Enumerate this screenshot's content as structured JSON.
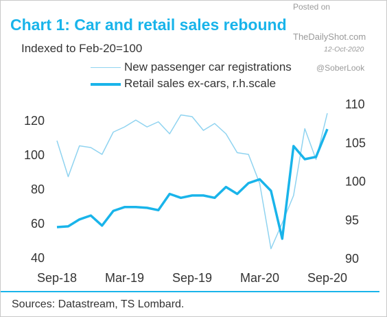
{
  "header": {
    "title": "Chart 1: Car and retail sales rebound",
    "subtitle": "Indexed to Feb-20=100"
  },
  "watermark": {
    "posted_on": "Posted on",
    "site": "TheDailyShot.com",
    "date": "12-Oct-2020",
    "handle": "@SoberLook"
  },
  "footer": {
    "sources": "Sources: Datastream, TS Lombard."
  },
  "colors": {
    "title": "#19b4ea",
    "car_series": "#8fd3f0",
    "retail_series": "#19b4ea",
    "footer_rule": "#19b4ea"
  },
  "chart_data": {
    "type": "line",
    "x": [
      "Sep-18",
      "Oct-18",
      "Nov-18",
      "Dec-18",
      "Jan-19",
      "Feb-19",
      "Mar-19",
      "Apr-19",
      "May-19",
      "Jun-19",
      "Jul-19",
      "Aug-19",
      "Sep-19",
      "Oct-19",
      "Nov-19",
      "Dec-19",
      "Jan-20",
      "Feb-20",
      "Mar-20",
      "Apr-20",
      "May-20",
      "Jun-20",
      "Jul-20",
      "Aug-20",
      "Sep-20"
    ],
    "xticks": [
      "Sep-18",
      "Mar-19",
      "Sep-19",
      "Mar-20",
      "Sep-20"
    ],
    "series": [
      {
        "name": "New passenger car registrations",
        "axis": "left",
        "values": [
          108,
          87,
          105,
          104,
          100,
          113,
          116,
          120,
          116,
          119,
          112,
          123,
          122,
          114,
          118,
          112,
          101,
          100,
          83,
          45,
          60,
          76,
          115,
          97,
          124
        ]
      },
      {
        "name": "Retail sales ex-cars, r.h.scale",
        "axis": "right",
        "values": [
          94.0,
          94.1,
          95.0,
          95.5,
          94.2,
          96.1,
          96.6,
          96.6,
          96.5,
          96.2,
          98.3,
          97.8,
          98.1,
          98.1,
          97.8,
          99.2,
          98.3,
          99.7,
          100.2,
          98.7,
          92.5,
          104.5,
          102.8,
          103.1,
          106.7
        ]
      }
    ],
    "ylim_left": [
      40,
      130
    ],
    "yticks_left": [
      40,
      60,
      80,
      100,
      120
    ],
    "ylim_right": [
      90,
      110
    ],
    "yticks_right": [
      90,
      95,
      100,
      105,
      110
    ],
    "legend": "top-right",
    "grid": false
  }
}
